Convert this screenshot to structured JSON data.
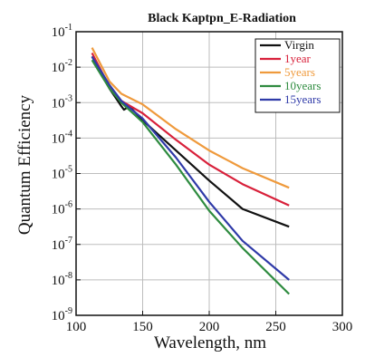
{
  "chart_data": {
    "type": "line",
    "title": "Black Kaptpn_E-Radiation",
    "xlabel": "Wavelength,  nm",
    "ylabel": "Quantum Efficiency",
    "xlim": [
      100,
      300
    ],
    "ylim_exponent": [
      -9,
      -1
    ],
    "yscale": "log",
    "x_ticks": [
      "100",
      "150",
      "200",
      "250",
      "300"
    ],
    "y_tick_base": "10",
    "y_tick_exponents": [
      "-1",
      "-2",
      "-3",
      "-4",
      "-5",
      "-6",
      "-7",
      "-8",
      "-9"
    ],
    "grid": true,
    "legend_position": "top-right",
    "series": [
      {
        "name": "Virgin",
        "color": "#111111",
        "x": [
          112,
          125,
          134,
          136,
          140,
          150,
          175,
          200,
          225,
          260
        ],
        "log10_y": [
          -1.7,
          -2.6,
          -3.1,
          -3.2,
          -3.1,
          -3.5,
          -4.35,
          -5.2,
          -6.0,
          -6.5
        ]
      },
      {
        "name": "1year",
        "color": "#d8203a",
        "x": [
          112,
          125,
          134,
          150,
          175,
          200,
          225,
          260
        ],
        "log10_y": [
          -1.6,
          -2.55,
          -2.95,
          -3.3,
          -4.05,
          -4.75,
          -5.3,
          -5.9
        ]
      },
      {
        "name": "5years",
        "color": "#ef9a3c",
        "x": [
          112,
          125,
          134,
          150,
          175,
          200,
          225,
          260
        ],
        "log10_y": [
          -1.45,
          -2.4,
          -2.75,
          -3.05,
          -3.75,
          -4.35,
          -4.85,
          -5.4
        ]
      },
      {
        "name": "10years",
        "color": "#2e8b3f",
        "x": [
          112,
          125,
          134,
          150,
          175,
          200,
          225,
          260
        ],
        "log10_y": [
          -1.8,
          -2.6,
          -3.0,
          -3.55,
          -4.75,
          -6.05,
          -7.1,
          -8.4
        ]
      },
      {
        "name": "15years",
        "color": "#2f3aa8",
        "x": [
          112,
          125,
          134,
          150,
          175,
          200,
          225,
          260
        ],
        "log10_y": [
          -1.7,
          -2.5,
          -2.95,
          -3.45,
          -4.55,
          -5.8,
          -6.9,
          -8.0
        ]
      }
    ]
  }
}
